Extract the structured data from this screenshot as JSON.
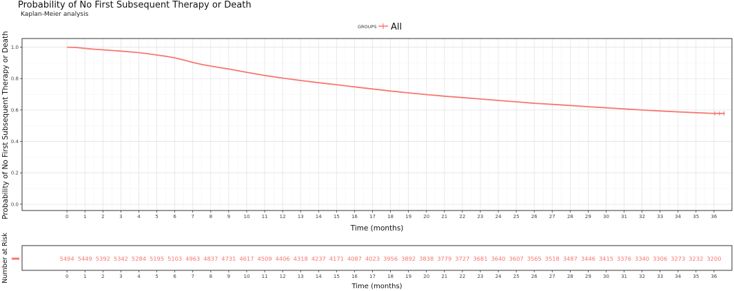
{
  "chart_data": [
    {
      "type": "line",
      "title": "Probability of No First Subsequent Therapy or Death",
      "subtitle": "Kaplan-Meier analysis",
      "xlabel": "Time (months)",
      "ylabel": "Probability of No First Subsequent Therapy or Death",
      "xlim": [
        -2.5,
        37
      ],
      "ylim": [
        -0.04,
        1.055
      ],
      "x_ticks": [
        0,
        1,
        2,
        3,
        4,
        5,
        6,
        7,
        8,
        9,
        10,
        11,
        12,
        13,
        14,
        15,
        16,
        17,
        18,
        19,
        20,
        21,
        22,
        23,
        24,
        25,
        26,
        27,
        28,
        29,
        30,
        31,
        32,
        33,
        34,
        35,
        36
      ],
      "y_ticks": [
        0.0,
        0.2,
        0.4,
        0.6,
        0.8,
        1.0
      ],
      "y_tick_labels": [
        "0.0",
        "0.2",
        "0.4",
        "0.6",
        "0.8",
        "1.0"
      ],
      "legend": {
        "title": "GROUPS",
        "position": "top-center",
        "entries": [
          "All"
        ]
      },
      "grid": true,
      "series": [
        {
          "name": "All",
          "color": "#F8766D",
          "x": [
            0,
            0.5,
            1,
            1.5,
            2,
            2.5,
            3,
            3.5,
            4,
            4.5,
            5,
            5.5,
            6,
            6.5,
            7,
            7.5,
            8,
            8.5,
            9,
            9.5,
            10,
            11,
            12,
            13,
            14,
            15,
            16,
            17,
            18,
            19,
            20,
            21,
            22,
            23,
            24,
            25,
            26,
            27,
            28,
            29,
            30,
            31,
            32,
            33,
            34,
            35,
            36,
            36.6
          ],
          "y": [
            1.0,
            0.998,
            0.992,
            0.987,
            0.983,
            0.979,
            0.975,
            0.97,
            0.965,
            0.958,
            0.95,
            0.942,
            0.932,
            0.918,
            0.903,
            0.89,
            0.88,
            0.87,
            0.861,
            0.85,
            0.84,
            0.82,
            0.803,
            0.788,
            0.774,
            0.761,
            0.747,
            0.734,
            0.721,
            0.709,
            0.698,
            0.688,
            0.679,
            0.67,
            0.661,
            0.652,
            0.643,
            0.636,
            0.629,
            0.621,
            0.614,
            0.607,
            0.6,
            0.594,
            0.588,
            0.583,
            0.578,
            0.578
          ]
        }
      ]
    },
    {
      "type": "table",
      "title": "Number at Risk",
      "xlabel": "Time (months)",
      "ylabel": "Number at Risk",
      "xlim": [
        -2.5,
        37
      ],
      "x_ticks": [
        0,
        1,
        2,
        3,
        4,
        5,
        6,
        7,
        8,
        9,
        10,
        11,
        12,
        13,
        14,
        15,
        16,
        17,
        18,
        19,
        20,
        21,
        22,
        23,
        24,
        25,
        26,
        27,
        28,
        29,
        30,
        31,
        32,
        33,
        34,
        35,
        36
      ],
      "row_label": "All",
      "values": [
        5494,
        5449,
        5392,
        5342,
        5284,
        5195,
        5103,
        4963,
        4837,
        4731,
        4617,
        4509,
        4406,
        4318,
        4237,
        4171,
        4087,
        4023,
        3956,
        3892,
        3838,
        3779,
        3727,
        3681,
        3640,
        3607,
        3565,
        3518,
        3487,
        3446,
        3415,
        3376,
        3340,
        3306,
        3273,
        3232,
        3200
      ]
    }
  ],
  "colors": {
    "series": "#F8766D",
    "panel_border": "#333333",
    "grid_major": "#e3e3e3",
    "grid_minor": "#f1f1f1"
  }
}
